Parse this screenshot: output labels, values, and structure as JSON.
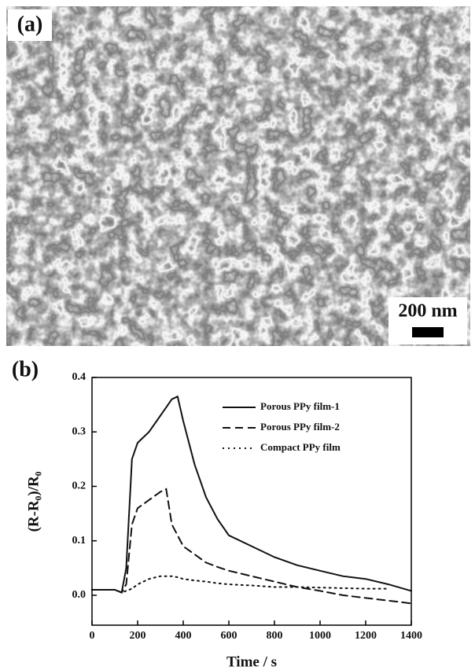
{
  "panels": {
    "a_label": "(a)",
    "scale_bar": "200 nm",
    "b_label": "(b)"
  },
  "chart_data": {
    "type": "line",
    "x_label": "Time / s",
    "y_label": "(R-R₀)/R₀",
    "x": [
      0,
      100,
      130,
      150,
      175,
      200,
      250,
      300,
      325,
      350,
      375,
      400,
      450,
      500,
      550,
      600,
      700,
      800,
      900,
      1000,
      1100,
      1200,
      1300,
      1400
    ],
    "series": [
      {
        "name": "Porous PPy film-1",
        "color": "#111111",
        "dash": "solid",
        "values": [
          0.01,
          0.01,
          0.005,
          0.05,
          0.25,
          0.28,
          0.3,
          0.33,
          0.345,
          0.36,
          0.365,
          0.32,
          0.24,
          0.18,
          0.14,
          0.11,
          0.09,
          0.07,
          0.055,
          0.045,
          0.035,
          0.03,
          0.02,
          0.008
        ]
      },
      {
        "name": "Porous PPy film-2",
        "color": "#111111",
        "dash": "dashed",
        "values": [
          0.01,
          0.01,
          0.005,
          0.02,
          0.13,
          0.16,
          0.175,
          0.19,
          0.195,
          0.13,
          0.11,
          0.09,
          0.075,
          0.06,
          0.052,
          0.045,
          0.035,
          0.025,
          0.015,
          0.008,
          0.0,
          -0.005,
          -0.01,
          -0.015
        ]
      },
      {
        "name": "Compact PPy film",
        "color": "#111111",
        "dash": "dotted",
        "values": [
          0.01,
          0.01,
          0.005,
          0.008,
          0.012,
          0.02,
          0.03,
          0.035,
          0.035,
          0.035,
          0.033,
          0.03,
          0.027,
          0.025,
          0.022,
          0.02,
          0.018,
          0.015,
          0.015,
          0.014,
          0.013,
          0.012,
          0.012,
          null
        ]
      }
    ],
    "xlim": [
      0,
      1400
    ],
    "xticks": [
      0,
      200,
      400,
      600,
      800,
      1000,
      1200,
      1400
    ],
    "ylim": [
      -0.055,
      0.4
    ],
    "yticks": [
      {
        "value": 0,
        "label": "0.0"
      },
      0.1,
      0.2,
      0.3,
      0.4
    ],
    "legend": "upper right",
    "grid": false
  }
}
